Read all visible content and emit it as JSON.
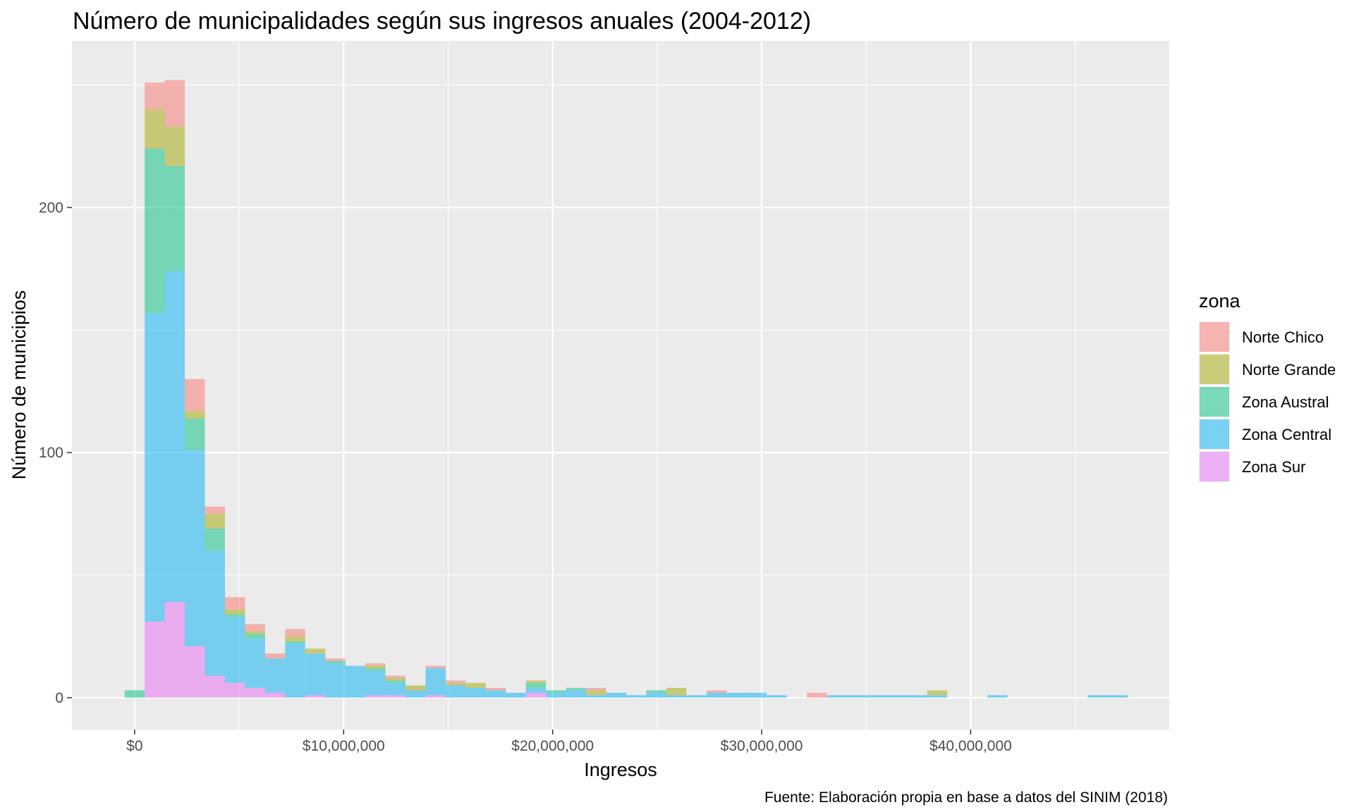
{
  "chart_data": {
    "type": "bar",
    "stacked": true,
    "histogram": true,
    "title": "Número de municipalidades según sus ingresos anuales (2004-2012)",
    "xlabel": "Ingresos",
    "ylabel": "Número de municipios",
    "caption": "Fuente: Elaboración propia en base a datos del SINIM (2018)",
    "legend_title": "zona",
    "legend_position": "right",
    "grid": true,
    "xlim": [
      -3000000,
      49500000
    ],
    "ylim": [
      -13,
      268
    ],
    "bin_width": 960000,
    "x_ticks": [
      {
        "value": 0,
        "label": "$0"
      },
      {
        "value": 10000000,
        "label": "$10,000,000"
      },
      {
        "value": 20000000,
        "label": "$20,000,000"
      },
      {
        "value": 30000000,
        "label": "$30,000,000"
      },
      {
        "value": 40000000,
        "label": "$40,000,000"
      }
    ],
    "y_ticks": [
      {
        "value": 0,
        "label": "0"
      },
      {
        "value": 100,
        "label": "100"
      },
      {
        "value": 200,
        "label": "200"
      }
    ],
    "x": [
      0,
      960000,
      1920000,
      2880000,
      3840000,
      4800000,
      5760000,
      6720000,
      7680000,
      8640000,
      9600000,
      10560000,
      11520000,
      12480000,
      13440000,
      14400000,
      15360000,
      16320000,
      17280000,
      18240000,
      19200000,
      20160000,
      21120000,
      22080000,
      23040000,
      24000000,
      24960000,
      25920000,
      26880000,
      27840000,
      28800000,
      29760000,
      30720000,
      31680000,
      32640000,
      33600000,
      34560000,
      35520000,
      36480000,
      37440000,
      38400000,
      39360000,
      40320000,
      41280000,
      42240000,
      43200000,
      44160000,
      45120000,
      46080000,
      47040000
    ],
    "series": [
      {
        "name": "Zona Sur",
        "color": "#E76BF3",
        "values": [
          0,
          31,
          39,
          21,
          9,
          6,
          4,
          2,
          0,
          1,
          0,
          0,
          1,
          1,
          0,
          1,
          0,
          0,
          0,
          0,
          2,
          0,
          0,
          0,
          0,
          0,
          0,
          0,
          0,
          0,
          0,
          0,
          0,
          0,
          0,
          0,
          0,
          0,
          0,
          0,
          0,
          0,
          0,
          0,
          0,
          0,
          0,
          0,
          0,
          0
        ]
      },
      {
        "name": "Zona Central",
        "color": "#00B0F6",
        "values": [
          0,
          126,
          135,
          80,
          51,
          27,
          20,
          14,
          22,
          17,
          14,
          13,
          10,
          5,
          3,
          11,
          5,
          4,
          3,
          2,
          2,
          2,
          3,
          1,
          2,
          1,
          2,
          1,
          1,
          2,
          2,
          2,
          1,
          0,
          0,
          1,
          1,
          1,
          1,
          1,
          1,
          0,
          0,
          1,
          0,
          0,
          0,
          0,
          1,
          1
        ]
      },
      {
        "name": "Zona Austral",
        "color": "#00BF7D",
        "values": [
          3,
          67,
          43,
          13,
          9,
          1,
          2,
          0,
          1,
          0,
          1,
          0,
          1,
          1,
          0,
          0,
          0,
          0,
          0,
          0,
          2,
          1,
          1,
          0,
          0,
          0,
          1,
          0,
          0,
          0,
          0,
          0,
          0,
          0,
          0,
          0,
          0,
          0,
          0,
          0,
          0,
          0,
          0,
          0,
          0,
          0,
          0,
          0,
          0,
          0
        ]
      },
      {
        "name": "Norte Grande",
        "color": "#A3A500",
        "values": [
          0,
          16,
          16,
          3,
          6,
          2,
          1,
          0,
          2,
          2,
          0,
          0,
          1,
          1,
          2,
          0,
          1,
          2,
          0,
          0,
          1,
          0,
          0,
          2,
          0,
          0,
          0,
          3,
          0,
          0,
          0,
          0,
          0,
          0,
          0,
          0,
          0,
          0,
          0,
          0,
          2,
          0,
          0,
          0,
          0,
          0,
          0,
          0,
          0,
          0
        ]
      },
      {
        "name": "Norte Chico",
        "color": "#F8766D",
        "values": [
          0,
          11,
          19,
          13,
          3,
          5,
          3,
          2,
          3,
          0,
          1,
          0,
          1,
          1,
          0,
          1,
          1,
          0,
          1,
          0,
          0,
          0,
          0,
          1,
          0,
          0,
          0,
          0,
          0,
          1,
          0,
          0,
          0,
          0,
          2,
          0,
          0,
          0,
          0,
          0,
          0,
          0,
          0,
          0,
          0,
          0,
          0,
          0,
          0,
          0
        ]
      }
    ],
    "legend_order": [
      "Norte Chico",
      "Norte Grande",
      "Zona Austral",
      "Zona Central",
      "Zona Sur"
    ],
    "bar_opacity": 0.5,
    "panel_color": "#EBEBEB",
    "grid_color": "#FFFFFF"
  }
}
